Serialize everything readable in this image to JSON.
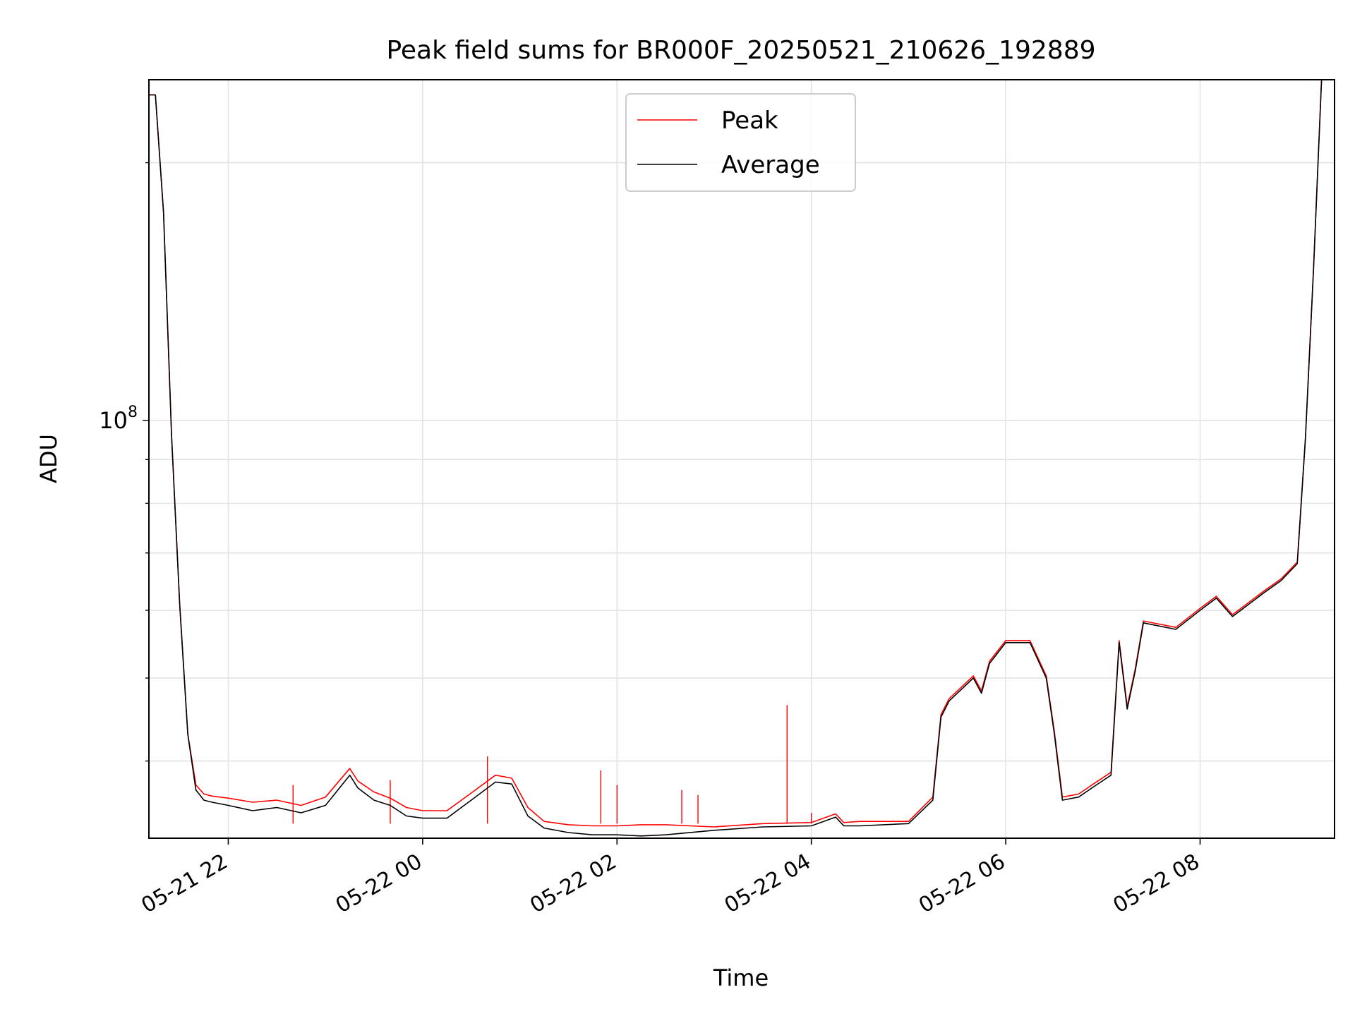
{
  "chart_data": {
    "type": "line",
    "title": "Peak field sums for BR000F_20250521_210626_192889",
    "xlabel": "Time",
    "ylabel": "ADU",
    "y_scale": "log",
    "y_tick_labels": [
      {
        "base": "10",
        "exp": "8",
        "value": 100000000
      }
    ],
    "ylim": [
      32500000,
      250000000
    ],
    "xlim": [
      "2025-05-21 21:11",
      "2025-05-22 09:23"
    ],
    "x_tick_labels": [
      "05-21 22",
      "05-22 00",
      "05-22 02",
      "05-22 04",
      "05-22 06",
      "05-22 08"
    ],
    "x_tick_values": [
      "2025-05-21 22:00",
      "2025-05-22 00:00",
      "2025-05-22 02:00",
      "2025-05-22 04:00",
      "2025-05-22 06:00",
      "2025-05-22 08:00"
    ],
    "grid": true,
    "legend": {
      "position": "top-center",
      "entries": [
        {
          "name": "Peak",
          "color": "#ff0000"
        },
        {
          "name": "Average",
          "color": "#000000"
        }
      ]
    },
    "series": [
      {
        "name": "Average",
        "color": "#000000",
        "x": [
          "2025-05-21 21:11",
          "2025-05-21 21:15",
          "2025-05-21 21:20",
          "2025-05-21 21:25",
          "2025-05-21 21:30",
          "2025-05-21 21:35",
          "2025-05-21 21:40",
          "2025-05-21 21:45",
          "2025-05-21 21:50",
          "2025-05-21 22:00",
          "2025-05-21 22:15",
          "2025-05-21 22:30",
          "2025-05-21 22:45",
          "2025-05-21 23:00",
          "2025-05-21 23:15",
          "2025-05-21 23:20",
          "2025-05-21 23:30",
          "2025-05-21 23:40",
          "2025-05-21 23:50",
          "2025-05-22 00:00",
          "2025-05-22 00:15",
          "2025-05-22 00:30",
          "2025-05-22 00:45",
          "2025-05-22 00:55",
          "2025-05-22 01:05",
          "2025-05-22 01:15",
          "2025-05-22 01:30",
          "2025-05-22 01:45",
          "2025-05-22 02:00",
          "2025-05-22 02:15",
          "2025-05-22 02:30",
          "2025-05-22 03:00",
          "2025-05-22 03:30",
          "2025-05-22 04:00",
          "2025-05-22 04:15",
          "2025-05-22 04:20",
          "2025-05-22 04:30",
          "2025-05-22 05:00",
          "2025-05-22 05:15",
          "2025-05-22 05:20",
          "2025-05-22 05:25",
          "2025-05-22 05:40",
          "2025-05-22 05:45",
          "05-22 05:50",
          "2025-05-22 06:00",
          "2025-05-22 06:15",
          "2025-05-22 06:25",
          "2025-05-22 06:30",
          "2025-05-22 06:35",
          "2025-05-22 06:45",
          "2025-05-22 06:55",
          "2025-05-22 07:05",
          "2025-05-22 07:10",
          "2025-05-22 07:15",
          "2025-05-22 07:20",
          "2025-05-22 07:25",
          "2025-05-22 07:45",
          "2025-05-22 08:00",
          "2025-05-22 08:10",
          "2025-05-22 08:20",
          "2025-05-22 08:40",
          "2025-05-22 08:50",
          "2025-05-22 09:00",
          "2025-05-22 09:05",
          "2025-05-22 09:10",
          "2025-05-22 09:15",
          "2025-05-22 09:20",
          "2025-05-22 09:23"
        ],
        "y": [
          240000000,
          240000000,
          175000000,
          96000000,
          61000000,
          43000000,
          37000000,
          36000000,
          35800000,
          35500000,
          35000000,
          35300000,
          34800000,
          35500000,
          38500000,
          37200000,
          36000000,
          35500000,
          34500000,
          34300000,
          34300000,
          36000000,
          37800000,
          37600000,
          34500000,
          33400000,
          33000000,
          32800000,
          32800000,
          32700000,
          32800000,
          33200000,
          33500000,
          33600000,
          34400000,
          33600000,
          33600000,
          33800000,
          36000000,
          45000000,
          47000000,
          50000000,
          48000000,
          52000000,
          55000000,
          55000000,
          50000000,
          43000000,
          36000000,
          36300000,
          37400000,
          38500000,
          55000000,
          46000000,
          51000000,
          58000000,
          57000000,
          60000000,
          62000000,
          59000000,
          63000000,
          65000000,
          68000000,
          95000000,
          150000000,
          250000000,
          250000000,
          250000000
        ]
      },
      {
        "name": "Peak",
        "color": "#ff0000",
        "x": [
          "2025-05-21 21:11",
          "2025-05-21 21:15",
          "2025-05-21 21:20",
          "2025-05-21 21:25",
          "2025-05-21 21:30",
          "2025-05-21 21:35",
          "2025-05-21 21:40",
          "2025-05-21 21:45",
          "2025-05-21 21:50",
          "2025-05-21 22:00",
          "2025-05-21 22:15",
          "2025-05-21 22:30",
          "2025-05-21 22:45",
          "2025-05-21 23:00",
          "2025-05-21 23:15",
          "2025-05-21 23:20",
          "2025-05-21 23:30",
          "2025-05-21 23:40",
          "2025-05-21 23:50",
          "2025-05-22 00:00",
          "2025-05-22 00:15",
          "2025-05-22 00:30",
          "2025-05-22 00:45",
          "2025-05-22 00:55",
          "2025-05-22 01:05",
          "2025-05-22 01:15",
          "2025-05-22 01:30",
          "2025-05-22 01:45",
          "2025-05-22 02:00",
          "2025-05-22 02:15",
          "2025-05-22 02:30",
          "2025-05-22 03:00",
          "2025-05-22 03:30",
          "2025-05-22 04:00",
          "2025-05-22 04:15",
          "2025-05-22 04:20",
          "2025-05-22 04:30",
          "2025-05-22 05:00",
          "2025-05-22 05:15",
          "2025-05-22 05:20",
          "2025-05-22 05:25",
          "2025-05-22 05:40",
          "2025-05-22 05:45",
          "2025-05-22 05:50",
          "2025-05-22 06:00",
          "2025-05-22 06:15",
          "2025-05-22 06:25",
          "2025-05-22 06:30",
          "2025-05-22 06:35",
          "2025-05-22 06:45",
          "2025-05-22 06:55",
          "2025-05-22 07:05",
          "2025-05-22 07:10",
          "2025-05-22 07:15",
          "2025-05-22 07:20",
          "2025-05-22 07:25",
          "2025-05-22 07:45",
          "2025-05-22 08:00",
          "2025-05-22 08:10",
          "2025-05-22 08:20",
          "2025-05-22 08:40",
          "2025-05-22 08:50",
          "2025-05-22 09:00",
          "2025-05-22 09:05",
          "2025-05-22 09:10",
          "2025-05-22 09:15",
          "2025-05-22 09:20",
          "2025-05-22 09:23"
        ],
        "y": [
          240000000,
          240000000,
          175000000,
          96000000,
          61000000,
          43000000,
          37500000,
          36600000,
          36400000,
          36200000,
          35800000,
          36000000,
          35500000,
          36300000,
          39200000,
          37900000,
          36800000,
          36200000,
          35300000,
          35000000,
          35000000,
          36700000,
          38500000,
          38200000,
          35300000,
          34000000,
          33700000,
          33600000,
          33600000,
          33700000,
          33700000,
          33500000,
          33800000,
          33900000,
          34700000,
          33900000,
          34000000,
          34000000,
          36300000,
          45300000,
          47300000,
          50300000,
          48300000,
          52300000,
          55300000,
          55300000,
          50300000,
          43300000,
          36300000,
          36600000,
          37700000,
          38800000,
          55300000,
          46300000,
          51300000,
          58300000,
          57300000,
          60300000,
          62300000,
          59300000,
          63300000,
          65300000,
          68300000,
          95300000,
          150000000,
          250000000,
          250000000,
          250000000
        ],
        "spikes": [
          {
            "x": "2025-05-21 22:40",
            "y": 37500000
          },
          {
            "x": "2025-05-21 23:40",
            "y": 38000000
          },
          {
            "x": "2025-05-22 00:40",
            "y": 40500000
          },
          {
            "x": "2025-05-22 01:50",
            "y": 39000000
          },
          {
            "x": "2025-05-22 02:00",
            "y": 37500000
          },
          {
            "x": "2025-05-22 02:40",
            "y": 37000000
          },
          {
            "x": "2025-05-22 02:50",
            "y": 36500000
          },
          {
            "x": "2025-05-22 03:45",
            "y": 46500000
          },
          {
            "x": "2025-05-22 04:00",
            "y": 34800000
          }
        ]
      }
    ]
  }
}
